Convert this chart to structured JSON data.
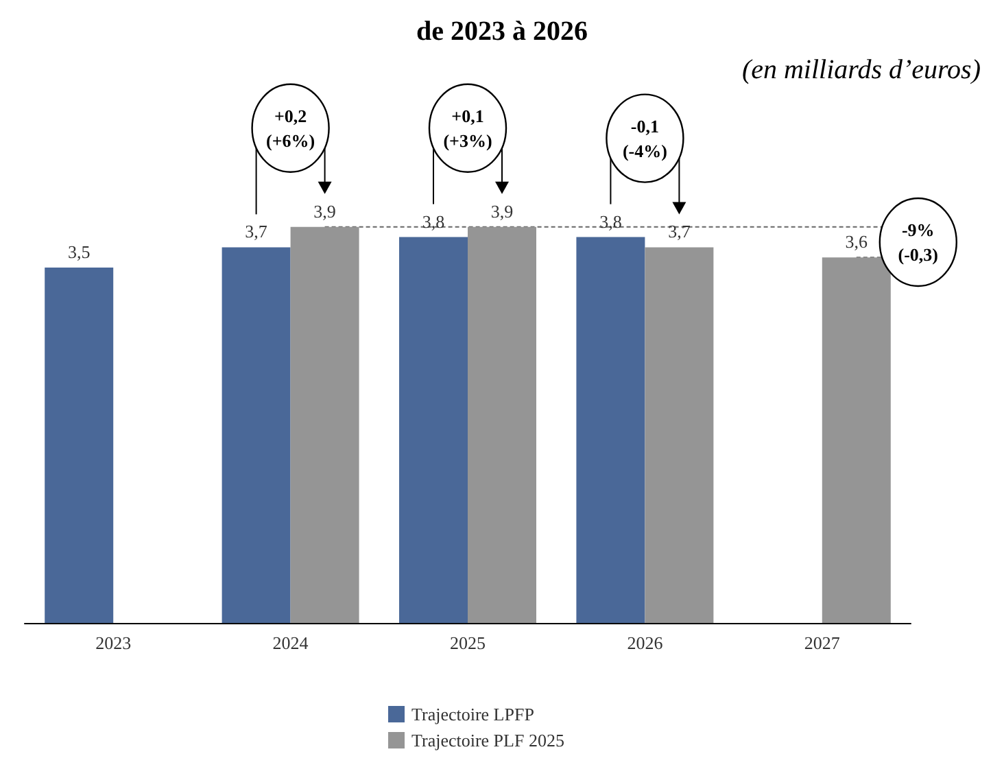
{
  "chart_data": {
    "type": "bar",
    "title": "de 2023 à 2026",
    "subtitle": "(en milliards d’euros)",
    "categories": [
      "2023",
      "2024",
      "2025",
      "2026",
      "2027"
    ],
    "series": [
      {
        "name": "Trajectoire LPFP",
        "color": "#4a6898",
        "values": [
          3.5,
          3.7,
          3.8,
          3.8,
          null
        ],
        "value_labels": [
          "3,5",
          "3,7",
          "3,8",
          "3,8",
          null
        ]
      },
      {
        "name": "Trajectoire PLF 2025",
        "color": "#959595",
        "values": [
          null,
          3.9,
          3.9,
          3.7,
          3.6
        ],
        "value_labels": [
          null,
          "3,9",
          "3,9",
          "3,7",
          "3,6"
        ]
      }
    ],
    "annotations": [
      "+0,2\n(+6%)",
      "+0,1\n(+3%)",
      "-0,1\n(-4%)",
      "-9%\n(-0,3)"
    ],
    "legend": "bottom"
  }
}
